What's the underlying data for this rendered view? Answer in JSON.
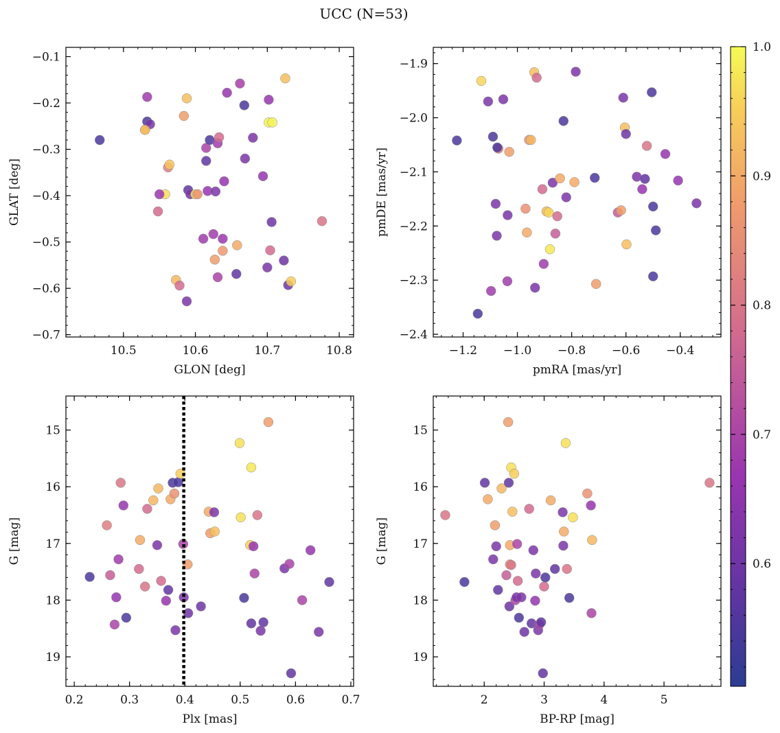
{
  "figure": {
    "suptitle": "UCC (N=53)"
  },
  "colors": {
    "cmap": "plasma",
    "point_alpha": 0.85,
    "line": "#000000"
  },
  "chart_data": [
    {
      "type": "scatter",
      "xlabel": "GLON [deg]",
      "ylabel": "GLAT [deg]",
      "xlim": [
        10.42,
        10.82
      ],
      "ylim": [
        -0.705,
        -0.08
      ],
      "xticks": [
        10.5,
        10.6,
        10.7,
        10.8
      ],
      "yticks": [
        -0.7,
        -0.6,
        -0.5,
        -0.4,
        -0.3,
        -0.2,
        -0.1
      ],
      "x": [
        10.467,
        10.533,
        10.533,
        10.53,
        10.537,
        10.53,
        10.548,
        10.558,
        10.562,
        10.564,
        10.55,
        10.573,
        10.578,
        10.584,
        10.588,
        10.59,
        10.588,
        10.593,
        10.6,
        10.603,
        10.611,
        10.615,
        10.615,
        10.617,
        10.62,
        10.625,
        10.627,
        10.628,
        10.631,
        10.631,
        10.633,
        10.638,
        10.638,
        10.644,
        10.64,
        10.657,
        10.658,
        10.662,
        10.668,
        10.669,
        10.68,
        10.694,
        10.7,
        10.702,
        10.704,
        10.706,
        10.702,
        10.707,
        10.723,
        10.725,
        10.729,
        10.733,
        10.776
      ],
      "y": [
        -0.28,
        -0.187,
        -0.24,
        -0.258,
        -0.246,
        -0.258,
        -0.434,
        -0.397,
        -0.339,
        -0.333,
        -0.397,
        -0.582,
        -0.594,
        -0.228,
        -0.628,
        -0.388,
        -0.19,
        -0.397,
        -0.397,
        -0.397,
        -0.493,
        -0.325,
        -0.297,
        -0.39,
        -0.28,
        -0.483,
        -0.538,
        -0.391,
        -0.576,
        -0.287,
        -0.274,
        -0.519,
        -0.493,
        -0.178,
        -0.369,
        -0.569,
        -0.507,
        -0.158,
        -0.205,
        -0.32,
        -0.275,
        -0.358,
        -0.555,
        -0.193,
        -0.518,
        -0.457,
        -0.242,
        -0.242,
        -0.54,
        -0.147,
        -0.593,
        -0.585,
        -0.455
      ],
      "c": [
        0.55,
        0.68,
        0.55,
        0.88,
        0.62,
        0.93,
        0.78,
        0.97,
        0.82,
        0.94,
        0.67,
        0.92,
        0.78,
        0.88,
        0.62,
        0.58,
        0.93,
        0.62,
        0.98,
        0.86,
        0.68,
        0.58,
        0.7,
        0.66,
        0.55,
        0.68,
        0.88,
        0.62,
        0.7,
        0.68,
        0.78,
        0.87,
        0.67,
        0.66,
        0.66,
        0.58,
        0.9,
        0.69,
        0.55,
        0.62,
        0.62,
        0.66,
        0.62,
        0.66,
        0.78,
        0.6,
        0.99,
        0.99,
        0.6,
        0.93,
        0.6,
        0.95,
        0.8
      ]
    },
    {
      "type": "scatter",
      "xlabel": "pmRA [mas/yr]",
      "ylabel": "pmDE [mas/yr]",
      "xlim": [
        -1.31,
        -0.25
      ],
      "ylim": [
        -2.405,
        -1.87
      ],
      "xticks": [
        -1.2,
        -1.0,
        -0.8,
        -0.6,
        -0.4
      ],
      "yticks": [
        -2.4,
        -2.3,
        -2.2,
        -2.1,
        -2.0,
        -1.9
      ],
      "x": [
        -1.223,
        -1.146,
        -1.133,
        -1.108,
        -1.097,
        -1.09,
        -1.08,
        -1.076,
        -1.07,
        -1.074,
        -1.052,
        -1.037,
        -1.036,
        -1.03,
        -0.97,
        -0.965,
        -0.957,
        -0.95,
        -0.938,
        -0.935,
        -0.929,
        -0.908,
        -0.903,
        -0.893,
        -0.885,
        -0.88,
        -0.87,
        -0.86,
        -0.853,
        -0.843,
        -0.83,
        -0.82,
        -0.79,
        -0.785,
        -0.71,
        -0.715,
        -0.63,
        -0.618,
        -0.61,
        -0.604,
        -0.6,
        -0.598,
        -0.523,
        -0.56,
        -0.54,
        -0.53,
        -0.505,
        -0.5,
        -0.5,
        -0.49,
        -0.455,
        -0.408,
        -0.34
      ],
      "y": [
        -2.042,
        -2.362,
        -1.932,
        -1.97,
        -2.32,
        -2.035,
        -2.159,
        -2.218,
        -2.057,
        -2.055,
        -1.966,
        -2.302,
        -2.18,
        -2.063,
        -2.168,
        -2.212,
        -2.041,
        -2.041,
        -1.916,
        -2.314,
        -1.926,
        -2.132,
        -2.27,
        -2.173,
        -2.175,
        -2.243,
        -2.12,
        -2.214,
        -2.182,
        -2.112,
        -2.006,
        -2.147,
        -2.119,
        -1.915,
        -2.307,
        -2.111,
        -2.175,
        -2.171,
        -1.963,
        -2.018,
        -2.03,
        -2.234,
        -2.052,
        -2.109,
        -2.132,
        -2.113,
        -1.953,
        -2.164,
        -2.293,
        -2.208,
        -2.067,
        -2.116,
        -2.158
      ],
      "c": [
        0.55,
        0.55,
        0.96,
        0.62,
        0.68,
        0.55,
        0.62,
        0.62,
        0.82,
        0.55,
        0.62,
        0.68,
        0.62,
        0.88,
        0.86,
        0.9,
        0.86,
        0.92,
        0.93,
        0.62,
        0.78,
        0.78,
        0.68,
        0.93,
        0.96,
        0.98,
        0.62,
        0.75,
        0.78,
        0.9,
        0.55,
        0.62,
        0.9,
        0.62,
        0.88,
        0.55,
        0.75,
        0.88,
        0.62,
        0.93,
        0.6,
        0.93,
        0.8,
        0.62,
        0.66,
        0.58,
        0.55,
        0.55,
        0.55,
        0.55,
        0.66,
        0.66,
        0.62
      ]
    },
    {
      "type": "scatter",
      "xlabel": "Plx [mas]",
      "ylabel": "G [mag]",
      "xlim": [
        0.185,
        0.705
      ],
      "ylim": [
        19.52,
        14.4
      ],
      "invert_y": true,
      "xticks": [
        0.2,
        0.3,
        0.4,
        0.5,
        0.6,
        0.7
      ],
      "yticks": [
        15,
        16,
        17,
        18,
        19
      ],
      "vline": {
        "x": 0.398,
        "style": "dotted"
      },
      "x": [
        0.228,
        0.259,
        0.265,
        0.273,
        0.276,
        0.28,
        0.284,
        0.289,
        0.294,
        0.317,
        0.319,
        0.328,
        0.332,
        0.343,
        0.35,
        0.352,
        0.357,
        0.366,
        0.37,
        0.374,
        0.378,
        0.383,
        0.381,
        0.388,
        0.392,
        0.397,
        0.398,
        0.406,
        0.405,
        0.429,
        0.443,
        0.446,
        0.454,
        0.453,
        0.499,
        0.501,
        0.507,
        0.518,
        0.52,
        0.52,
        0.524,
        0.526,
        0.531,
        0.537,
        0.542,
        0.551,
        0.58,
        0.589,
        0.592,
        0.612,
        0.627,
        0.642,
        0.661
      ],
      "y": [
        17.59,
        16.68,
        17.56,
        18.43,
        17.95,
        17.28,
        15.93,
        16.33,
        18.31,
        17.45,
        16.94,
        17.76,
        16.39,
        16.24,
        17.03,
        16.03,
        17.66,
        18.01,
        17.82,
        16.22,
        15.93,
        18.53,
        16.12,
        15.92,
        15.77,
        17.01,
        17.95,
        18.23,
        17.37,
        18.11,
        16.44,
        16.82,
        16.79,
        16.45,
        15.23,
        16.54,
        17.96,
        17.03,
        15.66,
        18.41,
        17.05,
        17.53,
        16.5,
        18.54,
        18.39,
        14.86,
        17.44,
        17.36,
        19.29,
        18.0,
        17.12,
        18.56,
        17.68
      ],
      "c": [
        0.55,
        0.82,
        0.75,
        0.7,
        0.66,
        0.68,
        0.8,
        0.66,
        0.55,
        0.78,
        0.9,
        0.8,
        0.78,
        0.92,
        0.62,
        0.92,
        0.78,
        0.66,
        0.58,
        0.9,
        0.55,
        0.62,
        0.86,
        0.55,
        0.95,
        0.7,
        0.62,
        0.6,
        0.88,
        0.6,
        0.9,
        0.88,
        0.93,
        0.62,
        0.97,
        0.97,
        0.55,
        0.95,
        0.98,
        0.58,
        0.66,
        0.7,
        0.8,
        0.62,
        0.58,
        0.88,
        0.62,
        0.7,
        0.58,
        0.7,
        0.66,
        0.62,
        0.58
      ]
    },
    {
      "type": "scatter",
      "xlabel": "BP-RP [mag]",
      "ylabel": "G [mag]",
      "xlim": [
        1.15,
        5.95
      ],
      "ylim": [
        19.52,
        14.4
      ],
      "invert_y": true,
      "xticks": [
        2,
        3,
        4,
        5
      ],
      "yticks": [
        15,
        16,
        17,
        18,
        19
      ],
      "x": [
        1.35,
        1.67,
        2.01,
        2.06,
        2.15,
        2.18,
        2.2,
        2.23,
        2.29,
        2.37,
        2.4,
        2.41,
        2.42,
        2.43,
        2.43,
        2.45,
        2.45,
        2.47,
        2.5,
        2.52,
        2.54,
        2.55,
        2.56,
        2.58,
        2.62,
        2.67,
        2.75,
        2.79,
        2.82,
        2.85,
        2.86,
        2.9,
        2.92,
        2.95,
        2.98,
        3.0,
        3.02,
        3.11,
        3.18,
        3.31,
        3.32,
        3.33,
        3.36,
        3.38,
        3.42,
        3.48,
        3.72,
        3.78,
        3.79,
        3.8,
        5.76
      ],
      "y": [
        16.5,
        17.68,
        15.93,
        16.22,
        17.28,
        16.68,
        17.05,
        17.82,
        16.03,
        17.56,
        14.86,
        15.93,
        18.11,
        17.03,
        17.37,
        17.38,
        15.66,
        16.44,
        15.77,
        18.0,
        17.95,
        17.01,
        17.66,
        18.31,
        17.95,
        18.56,
        16.39,
        18.41,
        17.12,
        18.01,
        17.53,
        18.53,
        18.43,
        18.39,
        19.29,
        17.76,
        17.6,
        16.24,
        17.45,
        16.45,
        17.04,
        16.79,
        15.23,
        17.45,
        17.96,
        16.54,
        16.12,
        16.33,
        18.23,
        16.94,
        15.93
      ],
      "c": [
        0.8,
        0.55,
        0.58,
        0.9,
        0.62,
        0.88,
        0.62,
        0.58,
        0.92,
        0.75,
        0.88,
        0.58,
        0.6,
        0.9,
        0.86,
        0.8,
        0.97,
        0.93,
        0.95,
        0.7,
        0.62,
        0.7,
        0.78,
        0.55,
        0.62,
        0.6,
        0.78,
        0.58,
        0.62,
        0.66,
        0.62,
        0.62,
        0.7,
        0.58,
        0.58,
        0.78,
        0.55,
        0.9,
        0.58,
        0.62,
        0.62,
        0.9,
        0.97,
        0.8,
        0.55,
        0.97,
        0.86,
        0.66,
        0.7,
        0.92,
        0.8
      ]
    }
  ],
  "colorbar": {
    "range": [
      0.505,
      1.0
    ],
    "ticks": [
      0.6,
      0.7,
      0.8,
      0.9,
      1.0
    ],
    "tick_labels": [
      "0.6",
      "0.7",
      "0.8",
      "0.9",
      "1.0"
    ]
  }
}
